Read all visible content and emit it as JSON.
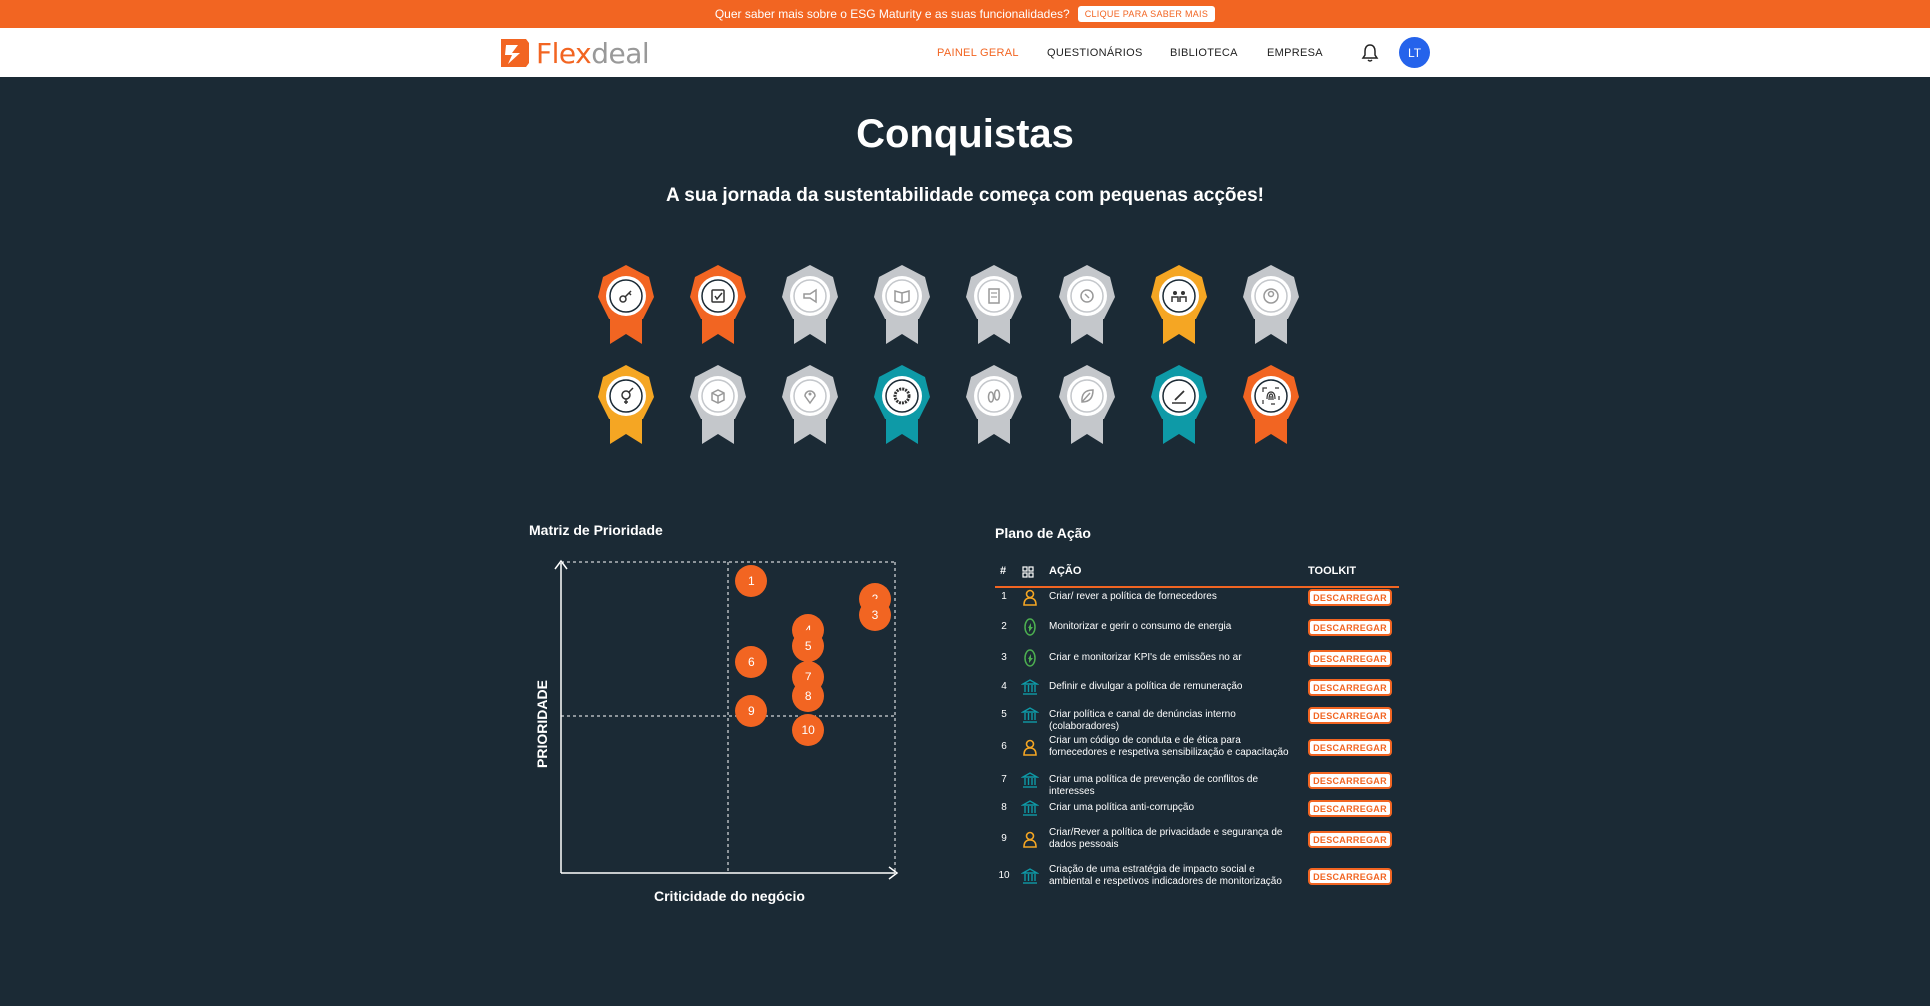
{
  "banner": {
    "text": "Quer saber mais sobre o ESG Maturity e as suas funcionalidades?",
    "button": "CLIQUE PARA SABER MAIS"
  },
  "brand": {
    "name_first": "Flex",
    "name_rest": "deal",
    "accent": "#f26522"
  },
  "nav": {
    "items": [
      {
        "label": "PAINEL GERAL",
        "active": true
      },
      {
        "label": "QUESTIONÁRIOS",
        "active": false
      },
      {
        "label": "BIBLIOTECA",
        "active": false
      },
      {
        "label": "EMPRESA",
        "active": false
      }
    ]
  },
  "user": {
    "initials": "LT"
  },
  "page": {
    "title": "Conquistas",
    "subtitle": "A sua jornada da sustentabilidade começa com pequenas acções!"
  },
  "badges": [
    {
      "icon": "key-icon",
      "state": "orange"
    },
    {
      "icon": "checkbox-icon",
      "state": "orange"
    },
    {
      "icon": "megaphone-icon",
      "state": "grey"
    },
    {
      "icon": "book-icon",
      "state": "grey"
    },
    {
      "icon": "document-icon",
      "state": "grey"
    },
    {
      "icon": "recycle-icon",
      "state": "grey"
    },
    {
      "icon": "people-icon",
      "state": "yellow"
    },
    {
      "icon": "user-circle-icon",
      "state": "grey"
    },
    {
      "icon": "gender-icon",
      "state": "yellow"
    },
    {
      "icon": "box-icon",
      "state": "grey"
    },
    {
      "icon": "location-icon",
      "state": "grey"
    },
    {
      "icon": "ring-icon",
      "state": "teal"
    },
    {
      "icon": "footprint-icon",
      "state": "grey"
    },
    {
      "icon": "leaf-icon",
      "state": "grey"
    },
    {
      "icon": "pen-icon",
      "state": "teal"
    },
    {
      "icon": "fingerprint-icon",
      "state": "orange"
    }
  ],
  "badge_colors": {
    "orange": "#f26522",
    "yellow": "#f5a623",
    "teal": "#0e9aa7",
    "grey": "#c4c7cb"
  },
  "matrix": {
    "title": "Matriz de Prioridade",
    "xlabel": "Criticidade do negócio",
    "ylabel": "PRIORIDADE"
  },
  "chart_data": {
    "type": "scatter",
    "points": [
      {
        "label": "1",
        "x": 0.57,
        "y": 0.94
      },
      {
        "label": "2",
        "x": 0.94,
        "y": 0.88
      },
      {
        "label": "3",
        "x": 0.94,
        "y": 0.83
      },
      {
        "label": "4",
        "x": 0.74,
        "y": 0.78
      },
      {
        "label": "5",
        "x": 0.74,
        "y": 0.73
      },
      {
        "label": "6",
        "x": 0.57,
        "y": 0.68
      },
      {
        "label": "7",
        "x": 0.74,
        "y": 0.63
      },
      {
        "label": "8",
        "x": 0.74,
        "y": 0.57
      },
      {
        "label": "9",
        "x": 0.57,
        "y": 0.52
      },
      {
        "label": "10",
        "x": 0.74,
        "y": 0.46
      }
    ],
    "xlim": [
      0,
      1
    ],
    "ylim": [
      0,
      1
    ],
    "xlabel": "Criticidade do negócio",
    "ylabel": "PRIORIDADE"
  },
  "plan": {
    "title": "Plano de Ação",
    "headers": {
      "num": "#",
      "action": "AÇÃO",
      "toolkit": "TOOLKIT"
    },
    "button_label": "DESCARREGAR",
    "rows": [
      {
        "num": "1",
        "icon": "person-icon",
        "icon_color": "#f5a623",
        "text": "Criar/ rever a política de fornecedores"
      },
      {
        "num": "2",
        "icon": "leaf-icon",
        "icon_color": "#4caf50",
        "text": "Monitorizar e gerir o consumo de energia"
      },
      {
        "num": "3",
        "icon": "leaf-icon",
        "icon_color": "#4caf50",
        "text": "Criar e monitorizar KPI's de emissões no ar"
      },
      {
        "num": "4",
        "icon": "institution-icon",
        "icon_color": "#0e9aa7",
        "text": "Definir e divulgar a política de remuneração"
      },
      {
        "num": "5",
        "icon": "institution-icon",
        "icon_color": "#0e9aa7",
        "text": "Criar política e canal de denúncias interno (colaboradores)"
      },
      {
        "num": "6",
        "icon": "person-icon",
        "icon_color": "#f5a623",
        "text": "Criar um código de conduta e de ética para fornecedores e respetiva sensibilização e capacitação"
      },
      {
        "num": "7",
        "icon": "institution-icon",
        "icon_color": "#0e9aa7",
        "text": "Criar uma política de prevenção de conflitos de interesses"
      },
      {
        "num": "8",
        "icon": "institution-icon",
        "icon_color": "#0e9aa7",
        "text": "Criar uma política anti-corrupção"
      },
      {
        "num": "9",
        "icon": "person-icon",
        "icon_color": "#f5a623",
        "text": "Criar/Rever a política de privacidade e segurança de dados pessoais"
      },
      {
        "num": "10",
        "icon": "institution-icon",
        "icon_color": "#0e9aa7",
        "text": "Criação de uma estratégia de impacto social e ambiental e respetivos indicadores de monitorização"
      }
    ]
  }
}
